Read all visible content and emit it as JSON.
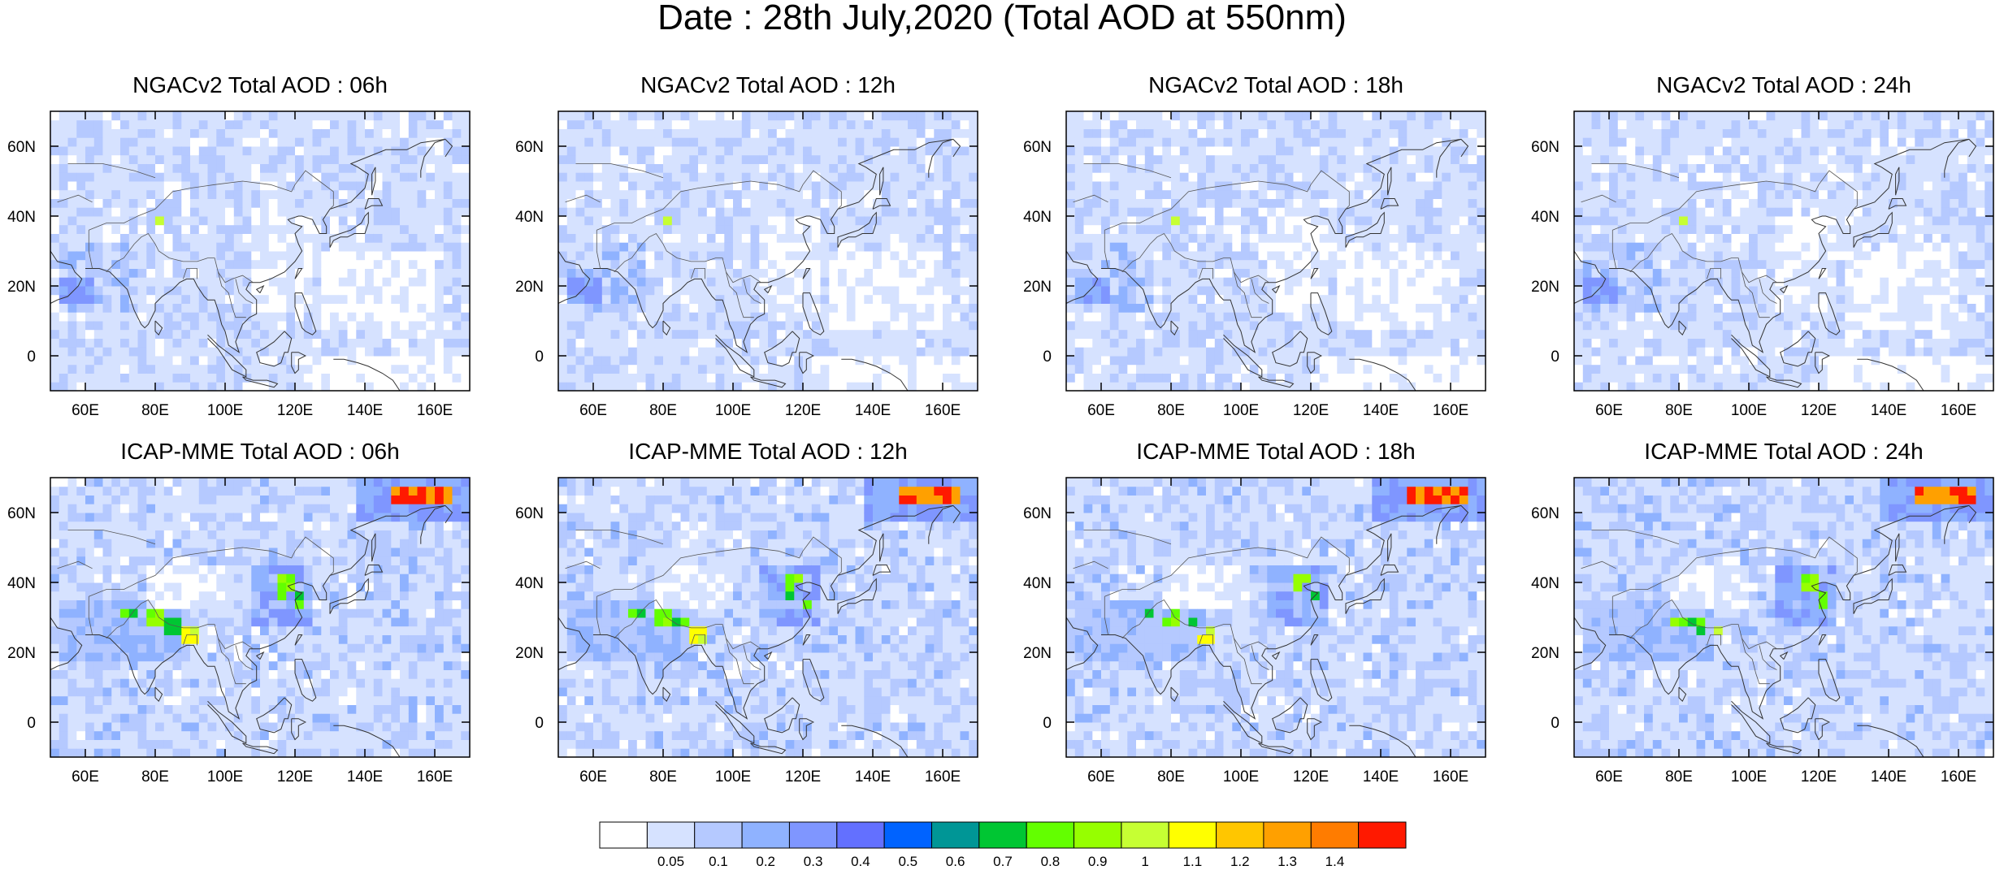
{
  "title": "Date : 28th July,2020 (Total AOD at 550nm)",
  "panels": [
    {
      "id": "ngac-06",
      "title": "NGACv2 Total AOD : 06h",
      "model": "NGACv2",
      "forecast_hour": "06h"
    },
    {
      "id": "ngac-12",
      "title": "NGACv2 Total AOD : 12h",
      "model": "NGACv2",
      "forecast_hour": "12h"
    },
    {
      "id": "ngac-18",
      "title": "NGACv2 Total AOD : 18h",
      "model": "NGACv2",
      "forecast_hour": "18h"
    },
    {
      "id": "ngac-24",
      "title": "NGACv2 Total AOD : 24h",
      "model": "NGACv2",
      "forecast_hour": "24h"
    },
    {
      "id": "icap-06",
      "title": "ICAP-MME Total AOD : 06h",
      "model": "ICAP-MME",
      "forecast_hour": "06h"
    },
    {
      "id": "icap-12",
      "title": "ICAP-MME Total AOD : 12h",
      "model": "ICAP-MME",
      "forecast_hour": "12h"
    },
    {
      "id": "icap-18",
      "title": "ICAP-MME Total AOD : 18h",
      "model": "ICAP-MME",
      "forecast_hour": "18h"
    },
    {
      "id": "icap-24",
      "title": "ICAP-MME Total AOD : 24h",
      "model": "ICAP-MME",
      "forecast_hour": "24h"
    }
  ],
  "map": {
    "lon_range": [
      50,
      170
    ],
    "lat_range": [
      -10,
      70
    ],
    "lon_ticks": [
      "60E",
      "80E",
      "100E",
      "120E",
      "140E",
      "160E"
    ],
    "lat_ticks": [
      "0",
      "20N",
      "40N",
      "60N"
    ]
  },
  "colorbar": {
    "levels": [
      "0.05",
      "0.1",
      "0.2",
      "0.3",
      "0.4",
      "0.5",
      "0.6",
      "0.7",
      "0.8",
      "0.9",
      "1",
      "1.1",
      "1.2",
      "1.3",
      "1.4"
    ],
    "colors": [
      "#ffffff",
      "#d6e2ff",
      "#b5c9ff",
      "#8fb2ff",
      "#7f96ff",
      "#6370ff",
      "#0063ff",
      "#009696",
      "#00c633",
      "#63ff00",
      "#96ff00",
      "#c6ff33",
      "#ffff00",
      "#ffc600",
      "#ffa000",
      "#ff7c00",
      "#ff1900"
    ]
  }
}
